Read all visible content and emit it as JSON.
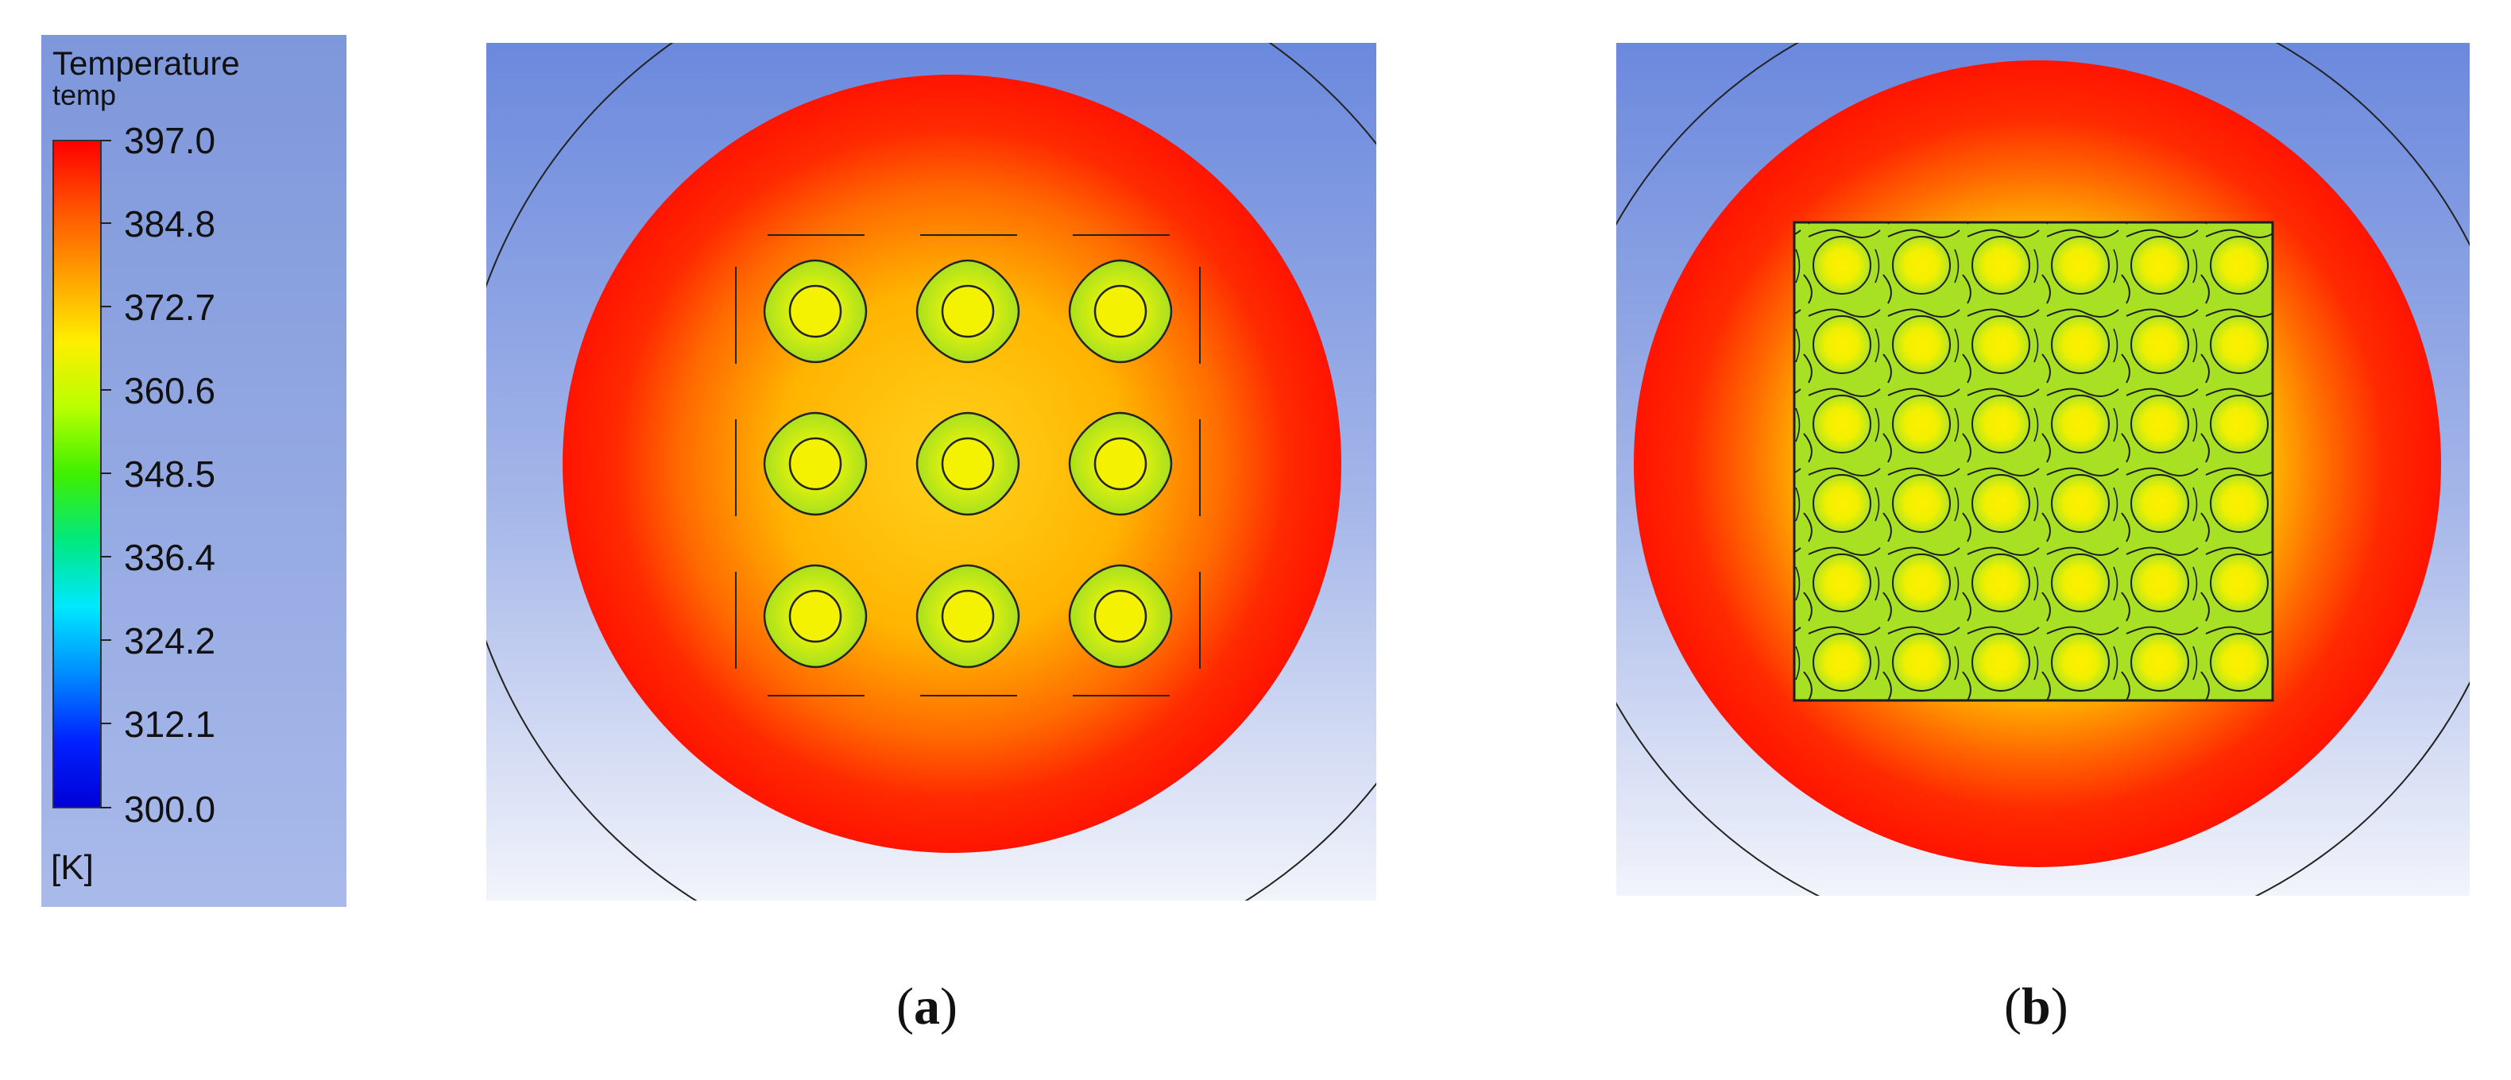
{
  "legend": {
    "title": "Temperature",
    "subtitle": "temp",
    "unit": "[K]",
    "ticks": [
      "397.0",
      "384.8",
      "372.7",
      "360.6",
      "348.5",
      "336.4",
      "324.2",
      "312.1",
      "300.0"
    ]
  },
  "colors": {
    "background_top": "#6b89dd",
    "background_bottom": "#f2f4fb",
    "hot": "#ff1a00",
    "warm": "#ff9a00",
    "mid": "#e6f000",
    "cool": "#9edf2a"
  },
  "panels": [
    {
      "label_open": "(",
      "label_letter": "a",
      "label_close": ")"
    },
    {
      "label_open": "(",
      "label_letter": "b",
      "label_close": ")"
    }
  ]
}
